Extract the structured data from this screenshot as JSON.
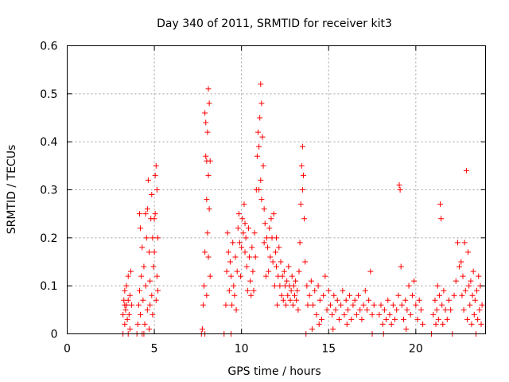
{
  "chart_data": {
    "type": "scatter",
    "title": "Day 340 of 2011, SRMTID for receiver kit3",
    "xlabel": "GPS time / hours",
    "ylabel": "SRMTID / TECUs",
    "xlim": [
      0,
      24
    ],
    "ylim": [
      0,
      0.6
    ],
    "xticks": [
      0,
      5,
      10,
      15,
      20
    ],
    "yticks": [
      0,
      0.1,
      0.2,
      0.3,
      0.4,
      0.5,
      0.6
    ],
    "ytick_labels": [
      "0",
      "0.1",
      "0.2",
      "0.3",
      "0.4",
      "0.5",
      "0.6"
    ],
    "grid": true,
    "marker": "+",
    "color": "#ff0000",
    "series": [
      {
        "name": "SRMTID",
        "points": [
          [
            3.2,
            0.0
          ],
          [
            3.2,
            0.04
          ],
          [
            3.25,
            0.07
          ],
          [
            3.3,
            0.09
          ],
          [
            3.3,
            0.02
          ],
          [
            3.35,
            0.05
          ],
          [
            3.4,
            0.1
          ],
          [
            3.4,
            0.06
          ],
          [
            3.45,
            0.03
          ],
          [
            3.5,
            0.12
          ],
          [
            3.5,
            0.07
          ],
          [
            3.55,
            0.04
          ],
          [
            3.6,
            0.08
          ],
          [
            3.6,
            0.01
          ],
          [
            3.65,
            0.13
          ],
          [
            3.7,
            0.06
          ],
          [
            3.3,
            0.06
          ],
          [
            3.5,
            0.0
          ],
          [
            4.0,
            0.0
          ],
          [
            4.05,
            0.02
          ],
          [
            4.1,
            0.06
          ],
          [
            4.15,
            0.09
          ],
          [
            4.15,
            0.25
          ],
          [
            4.2,
            0.22
          ],
          [
            4.2,
            0.04
          ],
          [
            4.25,
            0.12
          ],
          [
            4.3,
            0.18
          ],
          [
            4.3,
            0.0
          ],
          [
            4.35,
            0.07
          ],
          [
            4.4,
            0.14
          ],
          [
            4.45,
            0.02
          ],
          [
            4.5,
            0.1
          ],
          [
            4.55,
            0.2
          ],
          [
            4.6,
            0.26
          ],
          [
            4.6,
            0.05
          ],
          [
            4.65,
            0.32
          ],
          [
            4.7,
            0.17
          ],
          [
            4.7,
            0.01
          ],
          [
            4.75,
            0.11
          ],
          [
            4.8,
            0.24
          ],
          [
            4.85,
            0.29
          ],
          [
            4.85,
            0.08
          ],
          [
            4.9,
            0.2
          ],
          [
            4.9,
            0.04
          ],
          [
            4.95,
            0.14
          ],
          [
            5.0,
            0.24
          ],
          [
            5.0,
            0.17
          ],
          [
            5.05,
            0.33
          ],
          [
            5.1,
            0.35
          ],
          [
            5.1,
            0.07
          ],
          [
            5.15,
            0.3
          ],
          [
            5.15,
            0.12
          ],
          [
            5.2,
            0.2
          ],
          [
            5.2,
            0.09
          ],
          [
            4.5,
            0.25
          ],
          [
            4.4,
            0.0
          ],
          [
            4.75,
            0.06
          ],
          [
            5.05,
            0.25
          ],
          [
            7.7,
            0.0
          ],
          [
            7.75,
            0.01
          ],
          [
            7.8,
            0.06
          ],
          [
            7.85,
            0.1
          ],
          [
            7.9,
            0.46
          ],
          [
            7.9,
            0.17
          ],
          [
            7.95,
            0.44
          ],
          [
            7.95,
            0.37
          ],
          [
            8.0,
            0.28
          ],
          [
            8.0,
            0.08
          ],
          [
            8.05,
            0.42
          ],
          [
            8.05,
            0.21
          ],
          [
            8.1,
            0.51
          ],
          [
            8.1,
            0.33
          ],
          [
            8.15,
            0.48
          ],
          [
            8.15,
            0.26
          ],
          [
            8.2,
            0.36
          ],
          [
            8.2,
            0.12
          ],
          [
            7.9,
            0.0
          ],
          [
            8.0,
            0.36
          ],
          [
            8.1,
            0.16
          ],
          [
            9.0,
            0.0
          ],
          [
            9.1,
            0.06
          ],
          [
            9.15,
            0.13
          ],
          [
            9.2,
            0.21
          ],
          [
            9.25,
            0.17
          ],
          [
            9.3,
            0.09
          ],
          [
            9.35,
            0.15
          ],
          [
            9.4,
            0.12
          ],
          [
            9.45,
            0.06
          ],
          [
            9.5,
            0.19
          ],
          [
            9.55,
            0.1
          ],
          [
            9.6,
            0.08
          ],
          [
            9.65,
            0.16
          ],
          [
            9.7,
            0.05
          ],
          [
            9.75,
            0.13
          ],
          [
            9.8,
            0.22
          ],
          [
            9.85,
            0.25
          ],
          [
            9.9,
            0.19
          ],
          [
            9.95,
            0.12
          ],
          [
            10.0,
            0.18
          ],
          [
            10.05,
            0.24
          ],
          [
            10.1,
            0.21
          ],
          [
            10.15,
            0.27
          ],
          [
            10.2,
            0.17
          ],
          [
            10.25,
            0.2
          ],
          [
            10.3,
            0.14
          ],
          [
            10.35,
            0.09
          ],
          [
            10.4,
            0.22
          ],
          [
            10.45,
            0.16
          ],
          [
            10.5,
            0.11
          ],
          [
            10.55,
            0.08
          ],
          [
            10.6,
            0.18
          ],
          [
            10.65,
            0.13
          ],
          [
            10.7,
            0.09
          ],
          [
            10.75,
            0.21
          ],
          [
            10.8,
            0.16
          ],
          [
            10.85,
            0.3
          ],
          [
            10.9,
            0.37
          ],
          [
            10.95,
            0.42
          ],
          [
            11.0,
            0.39
          ],
          [
            11.05,
            0.45
          ],
          [
            11.1,
            0.52
          ],
          [
            11.1,
            0.32
          ],
          [
            11.15,
            0.48
          ],
          [
            11.15,
            0.28
          ],
          [
            11.2,
            0.41
          ],
          [
            11.25,
            0.35
          ],
          [
            11.3,
            0.26
          ],
          [
            11.35,
            0.23
          ],
          [
            11.4,
            0.12
          ],
          [
            11.45,
            0.2
          ],
          [
            11.5,
            0.18
          ],
          [
            11.55,
            0.13
          ],
          [
            11.6,
            0.22
          ],
          [
            11.65,
            0.16
          ],
          [
            11.7,
            0.24
          ],
          [
            11.75,
            0.2
          ],
          [
            11.8,
            0.15
          ],
          [
            11.85,
            0.25
          ],
          [
            11.9,
            0.1
          ],
          [
            11.95,
            0.17
          ],
          [
            12.0,
            0.14
          ],
          [
            12.05,
            0.06
          ],
          [
            12.1,
            0.12
          ],
          [
            12.15,
            0.18
          ],
          [
            12.2,
            0.1
          ],
          [
            12.25,
            0.15
          ],
          [
            12.3,
            0.08
          ],
          [
            12.35,
            0.12
          ],
          [
            12.4,
            0.07
          ],
          [
            12.45,
            0.13
          ],
          [
            12.5,
            0.1
          ],
          [
            12.55,
            0.06
          ],
          [
            12.6,
            0.11
          ],
          [
            12.65,
            0.08
          ],
          [
            12.7,
            0.14
          ],
          [
            12.75,
            0.1
          ],
          [
            12.8,
            0.07
          ],
          [
            12.85,
            0.09
          ],
          [
            12.9,
            0.12
          ],
          [
            12.95,
            0.06
          ],
          [
            13.0,
            0.1
          ],
          [
            13.05,
            0.08
          ],
          [
            13.1,
            0.11
          ],
          [
            13.15,
            0.07
          ],
          [
            13.2,
            0.09
          ],
          [
            13.25,
            0.05
          ],
          [
            13.3,
            0.13
          ],
          [
            13.35,
            0.19
          ],
          [
            13.4,
            0.27
          ],
          [
            13.45,
            0.35
          ],
          [
            13.5,
            0.39
          ],
          [
            13.5,
            0.3
          ],
          [
            13.55,
            0.33
          ],
          [
            13.6,
            0.24
          ],
          [
            13.65,
            0.15
          ],
          [
            13.7,
            0.0
          ],
          [
            13.75,
            0.1
          ],
          [
            13.8,
            0.06
          ],
          [
            9.4,
            0.0
          ],
          [
            10.2,
            0.23
          ],
          [
            11.0,
            0.3
          ],
          [
            11.3,
            0.19
          ],
          [
            12.0,
            0.2
          ],
          [
            13.9,
            0.08
          ],
          [
            14.0,
            0.11
          ],
          [
            14.1,
            0.06
          ],
          [
            14.2,
            0.09
          ],
          [
            14.3,
            0.04
          ],
          [
            14.4,
            0.1
          ],
          [
            14.5,
            0.07
          ],
          [
            14.6,
            0.03
          ],
          [
            14.7,
            0.08
          ],
          [
            14.8,
            0.12
          ],
          [
            14.9,
            0.05
          ],
          [
            15.0,
            0.09
          ],
          [
            15.1,
            0.06
          ],
          [
            15.2,
            0.04
          ],
          [
            15.3,
            0.08
          ],
          [
            15.4,
            0.05
          ],
          [
            15.5,
            0.07
          ],
          [
            15.6,
            0.03
          ],
          [
            15.7,
            0.06
          ],
          [
            15.8,
            0.09
          ],
          [
            15.9,
            0.04
          ],
          [
            16.0,
            0.07
          ],
          [
            16.1,
            0.05
          ],
          [
            16.2,
            0.08
          ],
          [
            16.3,
            0.03
          ],
          [
            16.4,
            0.06
          ],
          [
            16.5,
            0.07
          ],
          [
            16.6,
            0.04
          ],
          [
            16.7,
            0.08
          ],
          [
            16.8,
            0.05
          ],
          [
            16.9,
            0.03
          ],
          [
            17.0,
            0.06
          ],
          [
            17.1,
            0.09
          ],
          [
            17.2,
            0.05
          ],
          [
            17.3,
            0.07
          ],
          [
            17.4,
            0.13
          ],
          [
            17.5,
            0.04
          ],
          [
            17.6,
            0.06
          ],
          [
            14.05,
            0.01
          ],
          [
            14.45,
            0.02
          ],
          [
            15.25,
            0.01
          ],
          [
            16.05,
            0.02
          ],
          [
            17.5,
            0.0
          ],
          [
            17.9,
            0.04
          ],
          [
            18.0,
            0.06
          ],
          [
            18.1,
            0.02
          ],
          [
            18.2,
            0.05
          ],
          [
            18.3,
            0.03
          ],
          [
            18.4,
            0.07
          ],
          [
            18.5,
            0.04
          ],
          [
            18.6,
            0.02
          ],
          [
            18.7,
            0.06
          ],
          [
            18.8,
            0.03
          ],
          [
            18.9,
            0.05
          ],
          [
            19.0,
            0.08
          ],
          [
            19.05,
            0.31
          ],
          [
            19.1,
            0.3
          ],
          [
            19.15,
            0.14
          ],
          [
            19.2,
            0.06
          ],
          [
            19.3,
            0.03
          ],
          [
            19.4,
            0.07
          ],
          [
            19.5,
            0.05
          ],
          [
            19.6,
            0.1
          ],
          [
            19.7,
            0.04
          ],
          [
            19.8,
            0.08
          ],
          [
            19.9,
            0.11
          ],
          [
            20.0,
            0.06
          ],
          [
            20.1,
            0.03
          ],
          [
            20.2,
            0.07
          ],
          [
            20.3,
            0.05
          ],
          [
            20.4,
            0.02
          ],
          [
            18.15,
            0.0
          ],
          [
            19.45,
            0.01
          ],
          [
            20.9,
            0.0
          ],
          [
            21.0,
            0.04
          ],
          [
            21.1,
            0.07
          ],
          [
            21.15,
            0.02
          ],
          [
            21.2,
            0.05
          ],
          [
            21.25,
            0.1
          ],
          [
            21.3,
            0.03
          ],
          [
            21.35,
            0.08
          ],
          [
            21.4,
            0.27
          ],
          [
            21.45,
            0.24
          ],
          [
            21.5,
            0.06
          ],
          [
            21.55,
            0.02
          ],
          [
            21.6,
            0.09
          ],
          [
            21.7,
            0.05
          ],
          [
            21.8,
            0.03
          ],
          [
            21.9,
            0.07
          ],
          [
            22.0,
            0.05
          ],
          [
            22.1,
            0.0
          ],
          [
            22.2,
            0.08
          ],
          [
            22.3,
            0.11
          ],
          [
            22.4,
            0.19
          ],
          [
            22.5,
            0.14
          ],
          [
            22.6,
            0.15
          ],
          [
            22.65,
            0.08
          ],
          [
            22.7,
            0.12
          ],
          [
            22.75,
            0.05
          ],
          [
            22.8,
            0.19
          ],
          [
            22.85,
            0.09
          ],
          [
            22.9,
            0.34
          ],
          [
            22.95,
            0.03
          ],
          [
            23.0,
            0.17
          ],
          [
            23.05,
            0.1
          ],
          [
            23.1,
            0.06
          ],
          [
            23.15,
            0.11
          ],
          [
            23.2,
            0.02
          ],
          [
            23.25,
            0.08
          ],
          [
            23.3,
            0.13
          ],
          [
            23.35,
            0.04
          ],
          [
            23.4,
            0.07
          ],
          [
            23.45,
            0.0
          ],
          [
            23.5,
            0.09
          ],
          [
            23.55,
            0.03
          ],
          [
            23.6,
            0.12
          ],
          [
            23.65,
            0.05
          ],
          [
            23.7,
            0.1
          ],
          [
            23.75,
            0.02
          ],
          [
            23.8,
            0.06
          ]
        ]
      }
    ]
  }
}
